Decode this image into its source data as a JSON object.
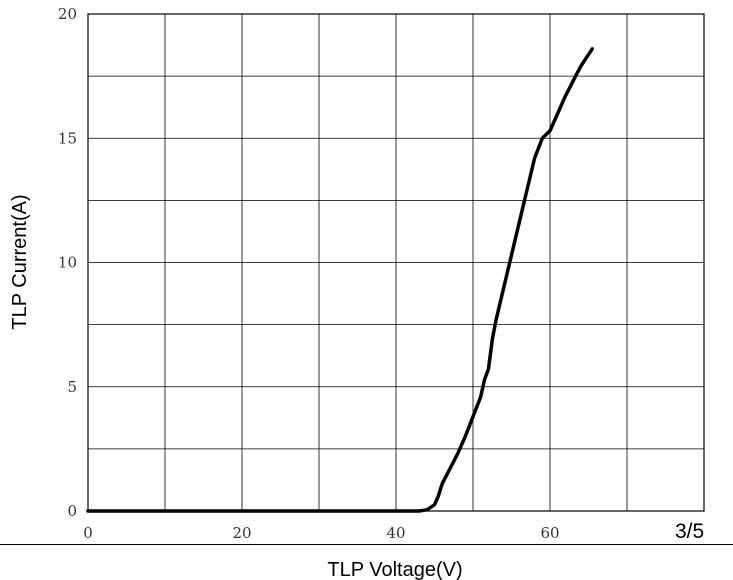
{
  "chart_data": {
    "type": "line",
    "title": "",
    "xlabel": "TLP Voltage(V)",
    "ylabel": "TLP Current(A)",
    "xlim": [
      0,
      80
    ],
    "ylim": [
      0,
      20
    ],
    "x_ticks": [
      "0",
      "20",
      "40",
      "60"
    ],
    "y_ticks": [
      "0",
      "5",
      "10",
      "15",
      "20"
    ],
    "grid": true,
    "series": [
      {
        "x": [
          0,
          10,
          20,
          30,
          40,
          43,
          44,
          45,
          45.5,
          46,
          47,
          48,
          49,
          50,
          51,
          51.5,
          52,
          52.5,
          53,
          54,
          55,
          56,
          57,
          58,
          59,
          60,
          61,
          62,
          63,
          64,
          65.5
        ],
        "y": [
          0,
          0,
          0,
          0,
          0,
          0,
          0.05,
          0.25,
          0.6,
          1.1,
          1.7,
          2.3,
          3.0,
          3.8,
          4.6,
          5.3,
          5.7,
          6.9,
          7.7,
          9.0,
          10.3,
          11.6,
          12.9,
          14.2,
          15.0,
          15.3,
          16.0,
          16.7,
          17.3,
          17.9,
          18.6
        ],
        "color": "#000000"
      }
    ]
  },
  "page": {
    "number": "3/5"
  }
}
